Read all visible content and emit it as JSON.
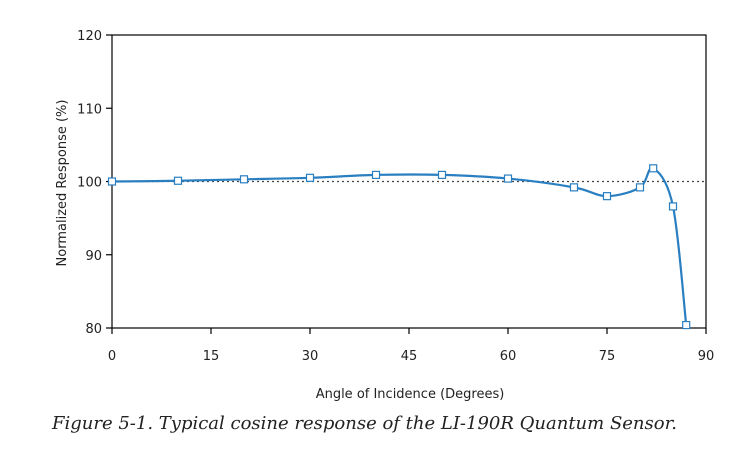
{
  "caption": "Figure 5-1. Typical cosine response of the LI-190R Quantum Sensor.",
  "chart_data": {
    "type": "line",
    "xlabel": "Angle of Incidence (Degrees)",
    "ylabel": "Normalized Response (%)",
    "xlim": [
      0,
      90
    ],
    "ylim": [
      80,
      120
    ],
    "xticks": [
      0,
      15,
      30,
      45,
      60,
      75,
      90
    ],
    "yticks": [
      80,
      90,
      100,
      110,
      120
    ],
    "reference_line": 100,
    "grid": false,
    "series": [
      {
        "x": [
          0,
          10,
          20,
          30,
          40,
          50,
          60,
          70,
          75,
          80,
          82,
          85,
          87
        ],
        "y": [
          100.0,
          100.1,
          100.3,
          100.5,
          100.9,
          100.9,
          100.4,
          99.2,
          98.0,
          99.2,
          101.8,
          96.6,
          80.4
        ]
      }
    ],
    "colors": {
      "line": "#2a7fc1",
      "marker_edge": "#2a7fc1",
      "marker_fill": "#ffffff",
      "axis": "#000000",
      "reference": "#444444"
    }
  }
}
